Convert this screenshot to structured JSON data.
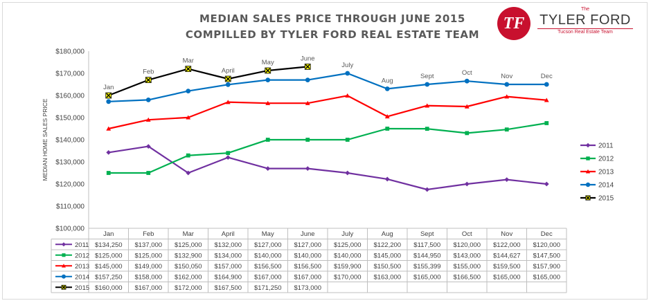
{
  "title_line1": "MEDIAN SALES PRICE THROUGH JUNE 2015",
  "title_line2": "COMPILLED BY TYLER FORD REAL ESTATE TEAM",
  "logo": {
    "the": "The",
    "brand": "TYLER FORD",
    "tagline": "Tucson Real Estate Team"
  },
  "chart_data": {
    "type": "line",
    "title": "MEDIAN SALES PRICE THROUGH JUNE 2015",
    "subtitle": "COMPILLED BY TYLER FORD REAL ESTATE TEAM",
    "ylabel": "MEDIAN HOME SALES PRICE",
    "xlabel": "",
    "ylim": [
      100000,
      180000
    ],
    "yticks": [
      100000,
      110000,
      120000,
      130000,
      140000,
      150000,
      160000,
      170000,
      180000
    ],
    "ytick_labels": [
      "$100,000",
      "$110,000",
      "$120,000",
      "$130,000",
      "$140,000",
      "$150,000",
      "$160,000",
      "$170,000",
      "$180,000"
    ],
    "categories": [
      "Jan",
      "Feb",
      "Mar",
      "April",
      "May",
      "June",
      "July",
      "Aug",
      "Sept",
      "Oct",
      "Nov",
      "Dec"
    ],
    "grid": false,
    "legend_position": "right",
    "data_table": true,
    "series": [
      {
        "name": "2011",
        "color": "#7030a0",
        "marker": "diamond",
        "values": [
          134250,
          137000,
          125000,
          132000,
          127000,
          127000,
          125000,
          122200,
          117500,
          120000,
          122000,
          120000
        ],
        "labels": [
          "$134,250",
          "$137,000",
          "$125,000",
          "$132,000",
          "$127,000",
          "$127,000",
          "$125,000",
          "$122,200",
          "$117,500",
          "$120,000",
          "$122,000",
          "$120,000"
        ]
      },
      {
        "name": "2012",
        "color": "#00b050",
        "marker": "square",
        "values": [
          125000,
          125000,
          132900,
          134000,
          140000,
          140000,
          140000,
          145000,
          144950,
          143000,
          144627,
          147500
        ],
        "labels": [
          "$125,000",
          "$125,000",
          "$132,900",
          "$134,000",
          "$140,000",
          "$140,000",
          "$140,000",
          "$145,000",
          "$144,950",
          "$143,000",
          "$144,627",
          "$147,500"
        ]
      },
      {
        "name": "2013",
        "color": "#ff0000",
        "marker": "triangle",
        "values": [
          145000,
          149000,
          150050,
          157000,
          156500,
          156500,
          159900,
          150500,
          155399,
          155000,
          159500,
          157900
        ],
        "labels": [
          "$145,000",
          "$149,000",
          "$150,050",
          "$157,000",
          "$156,500",
          "$156,500",
          "$159,900",
          "$150,500",
          "$155,399",
          "$155,000",
          "$159,500",
          "$157,900"
        ]
      },
      {
        "name": "2014",
        "color": "#0070c0",
        "marker": "circle",
        "values": [
          157250,
          158000,
          162000,
          164900,
          167000,
          167000,
          170000,
          163000,
          165000,
          166500,
          165000,
          165000
        ],
        "labels": [
          "$157,250",
          "$158,000",
          "$162,000",
          "$164,900",
          "$167,000",
          "$167,000",
          "$170,000",
          "$163,000",
          "$165,000",
          "$166,500",
          "$165,000",
          "$165,000"
        ]
      },
      {
        "name": "2015",
        "color": "#000000",
        "marker": "star-yellow",
        "marker_fill": "#ffff00",
        "values": [
          160000,
          167000,
          172000,
          167500,
          171250,
          173000,
          null,
          null,
          null,
          null,
          null,
          null
        ],
        "labels": [
          "$160,000",
          "$167,000",
          "$172,000",
          "$167,500",
          "$171,250",
          "$173,000",
          "",
          "",
          "",
          "",
          "",
          ""
        ]
      }
    ]
  }
}
